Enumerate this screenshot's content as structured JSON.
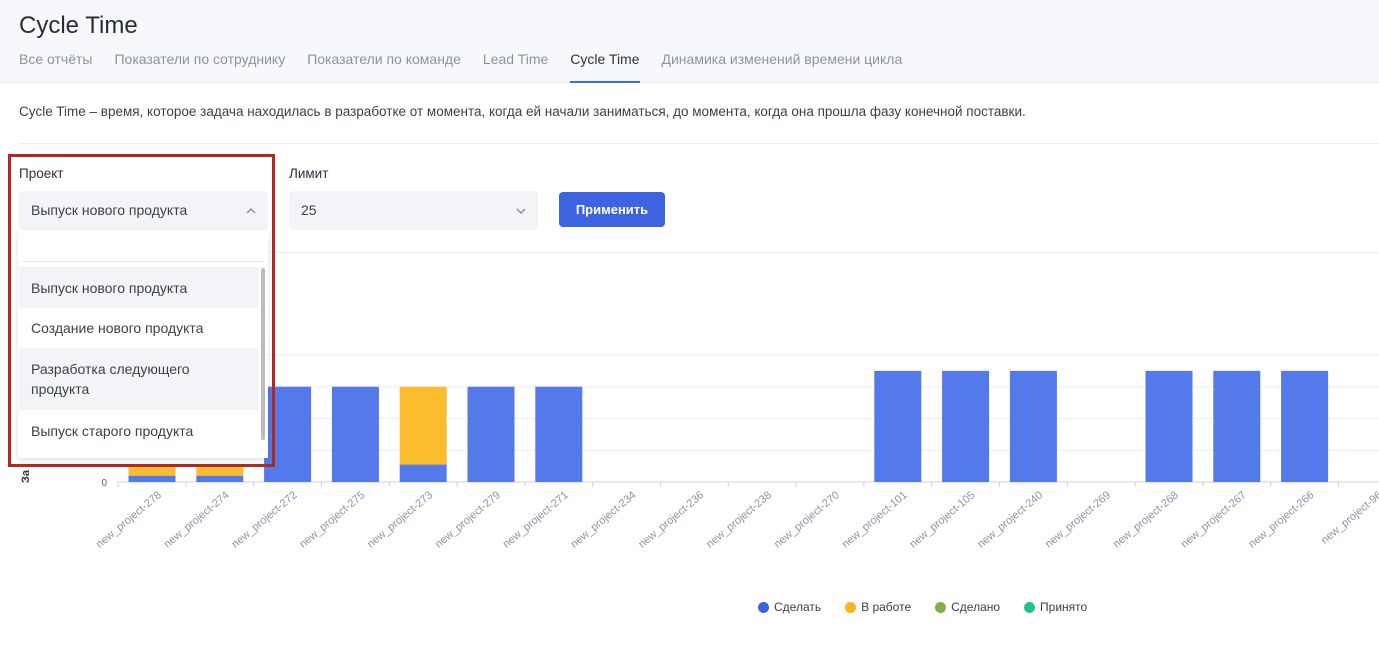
{
  "page": {
    "title": "Cycle Time"
  },
  "tabs": [
    {
      "label": "Все отчёты",
      "active": false
    },
    {
      "label": "Показатели по сотруднику",
      "active": false
    },
    {
      "label": "Показатели по команде",
      "active": false
    },
    {
      "label": "Lead Time",
      "active": false
    },
    {
      "label": "Cycle Time",
      "active": true
    },
    {
      "label": "Динамика изменений времени цикла",
      "active": false
    }
  ],
  "description": "Cycle Time – время, которое задача находилась в разработке от момента, когда ей начали заниматься, до момента, когда она прошла фазу конечной поставки.",
  "filters": {
    "project_label": "Проект",
    "project_value": "Выпуск нового продукта",
    "limit_label": "Лимит",
    "limit_value": "25",
    "apply_label": "Применить"
  },
  "dropdown": {
    "search_value": "",
    "options": [
      "Выпуск нового продукта",
      "Создание нового продукта",
      "Разработка следующего продукта",
      "Выпуск старого продукта"
    ]
  },
  "icons": {
    "project_chevron": "chevron-up-icon",
    "limit_chevron": "chevron-down-icon"
  },
  "colors": {
    "accent": "#3d63e0",
    "highlight": "#b5281f"
  },
  "chart_data": {
    "type": "bar",
    "stacked": true,
    "ylabel_partial": "За",
    "y_tick_visible": "0",
    "categories": [
      "new_project-278",
      "new_project-274",
      "new_project-272",
      "new_project-275",
      "new_project-273",
      "new_project-279",
      "new_project-271",
      "new_project-234",
      "new_project-236",
      "new_project-238",
      "new_project-270",
      "new_project-101",
      "new_project-105",
      "new_project-240",
      "new_project-269",
      "new_project-268",
      "new_project-267",
      "new_project-266",
      "new_project-96"
    ],
    "series": [
      {
        "name": "Сделать",
        "color": "#5479ea",
        "values": [
          0.2,
          0.2,
          3,
          3,
          0.55,
          3,
          3,
          0,
          0,
          0,
          0,
          3.5,
          3.5,
          3.5,
          0,
          3.5,
          3.5,
          3.5,
          0
        ]
      },
      {
        "name": "В работе",
        "color": "#fbbd2c",
        "values": [
          0.3,
          0.3,
          0,
          0,
          2.45,
          0,
          0,
          0,
          0,
          0,
          0,
          0,
          0,
          0,
          0,
          0,
          0,
          0,
          0
        ]
      },
      {
        "name": "Сделано",
        "color": "#7cb245",
        "values": [
          0,
          0,
          0,
          0,
          0,
          0,
          0,
          0,
          0,
          0,
          0,
          0,
          0,
          0,
          0,
          0,
          0,
          0,
          0
        ]
      },
      {
        "name": "Принято",
        "color": "#25c284",
        "values": [
          0,
          0,
          0,
          0,
          0,
          0,
          0,
          0,
          0,
          0,
          0,
          0,
          0,
          0,
          0,
          0,
          0,
          0,
          0
        ]
      }
    ],
    "ylim": [
      0,
      4
    ],
    "grid": true,
    "legend": "bottom"
  }
}
